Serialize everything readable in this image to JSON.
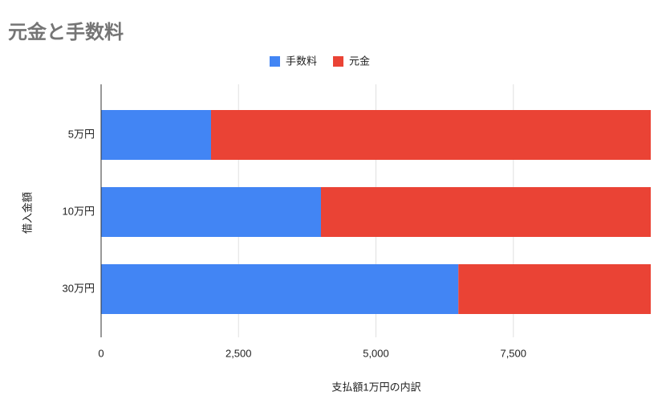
{
  "chart_data": {
    "type": "stacked_barh",
    "title": "元金と手数料",
    "x_label": "支払額1万円の内訳",
    "y_label": "借入金額",
    "categories": [
      "5万円",
      "10万円",
      "30万円"
    ],
    "series": [
      {
        "name": "手数料",
        "color": "#4285f4",
        "values": [
          2000,
          4000,
          6500
        ]
      },
      {
        "name": "元金",
        "color": "#ea4335",
        "values": [
          8000,
          6000,
          3500
        ]
      }
    ],
    "xlim": [
      0,
      10000
    ],
    "xticks": [
      0,
      {
        "value": 2500,
        "label": "2,500"
      },
      {
        "value": 5000,
        "label": "5,000"
      },
      {
        "value": 7500,
        "label": "7,500"
      }
    ],
    "grid": true,
    "legend": "top"
  }
}
